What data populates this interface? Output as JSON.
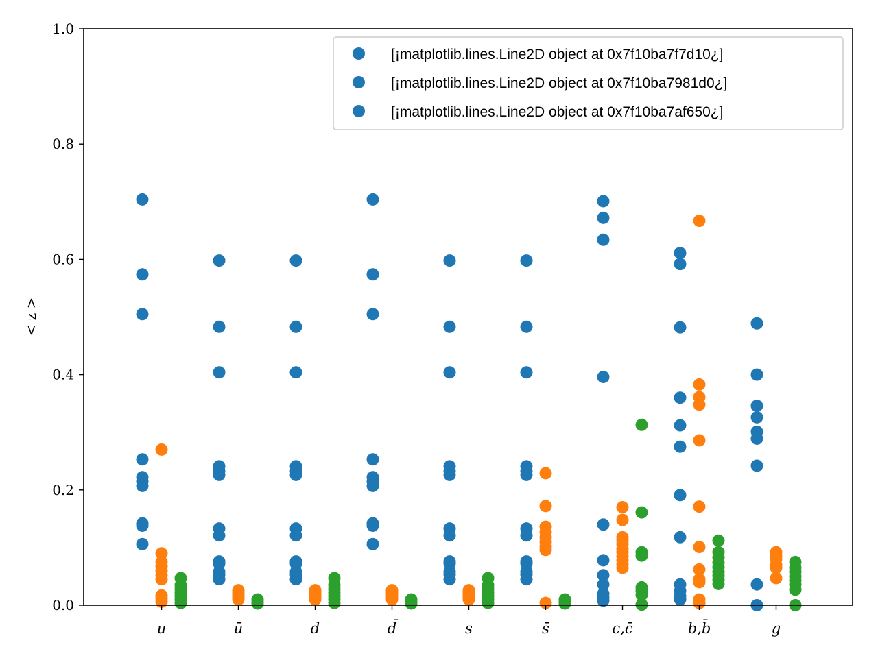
{
  "chart_data": {
    "type": "scatter",
    "categories": [
      "u",
      "ū",
      "d",
      "d̄",
      "s",
      "s̄",
      "c,c̄",
      "b,b̄",
      "g"
    ],
    "ylabel": "< z >",
    "xlabel": "",
    "ylim": [
      0,
      1
    ],
    "yticks": [
      "0.0",
      "0.2",
      "0.4",
      "0.6",
      "0.8",
      "1.0"
    ],
    "grid": false,
    "legend_position": "top-right",
    "legend": [
      "[¡matplotlib.lines.Line2D object at 0x7f10ba7f7d10¿]",
      "[¡matplotlib.lines.Line2D object at 0x7f10ba7981d0¿]",
      "[¡matplotlib.lines.Line2D object at 0x7f10ba7af650¿]"
    ],
    "legend_color": "#1f77b4",
    "series": [
      {
        "color": "#1f77b4",
        "offset": -0.25,
        "values": [
          [
            0.704,
            0.574,
            0.505,
            0.253,
            0.222,
            0.215,
            0.207,
            0.142,
            0.138,
            0.106
          ],
          [
            0.598,
            0.483,
            0.404,
            0.241,
            0.233,
            0.226,
            0.133,
            0.121,
            0.076,
            0.072,
            0.058,
            0.053,
            0.045
          ],
          [
            0.598,
            0.483,
            0.404,
            0.241,
            0.233,
            0.226,
            0.133,
            0.121,
            0.076,
            0.072,
            0.058,
            0.053,
            0.045
          ],
          [
            0.704,
            0.574,
            0.505,
            0.253,
            0.222,
            0.215,
            0.207,
            0.142,
            0.138,
            0.106
          ],
          [
            0.598,
            0.483,
            0.404,
            0.241,
            0.233,
            0.226,
            0.133,
            0.121,
            0.076,
            0.072,
            0.058,
            0.053,
            0.045
          ],
          [
            0.598,
            0.483,
            0.404,
            0.241,
            0.233,
            0.226,
            0.133,
            0.121,
            0.076,
            0.072,
            0.058,
            0.053,
            0.045
          ],
          [
            0.701,
            0.672,
            0.634,
            0.396,
            0.14,
            0.078,
            0.052,
            0.036,
            0.02,
            0.013,
            0.008
          ],
          [
            0.611,
            0.592,
            0.482,
            0.36,
            0.312,
            0.275,
            0.191,
            0.118,
            0.036,
            0.025,
            0.016,
            0.01
          ],
          [
            0.489,
            0.4,
            0.346,
            0.326,
            0.301,
            0.289,
            0.242,
            0.036,
            0.0
          ]
        ]
      },
      {
        "color": "#ff7f0e",
        "offset": 0.0,
        "values": [
          [
            0.27,
            0.09,
            0.075,
            0.068,
            0.06,
            0.052,
            0.045,
            0.017,
            0.012,
            0.006
          ],
          [
            0.026,
            0.022,
            0.018,
            0.014,
            0.01
          ],
          [
            0.026,
            0.022,
            0.018,
            0.014,
            0.01
          ],
          [
            0.026,
            0.022,
            0.018,
            0.014,
            0.01
          ],
          [
            0.026,
            0.022,
            0.018,
            0.014,
            0.01
          ],
          [
            0.229,
            0.172,
            0.136,
            0.127,
            0.118,
            0.11,
            0.102,
            0.096,
            0.004
          ],
          [
            0.17,
            0.148,
            0.118,
            0.112,
            0.106,
            0.098,
            0.092,
            0.085,
            0.078,
            0.071,
            0.065
          ],
          [
            0.667,
            0.383,
            0.361,
            0.348,
            0.286,
            0.171,
            0.101,
            0.062,
            0.045,
            0.04,
            0.01,
            0.004
          ],
          [
            0.092,
            0.086,
            0.08,
            0.07,
            0.065,
            0.047
          ]
        ]
      },
      {
        "color": "#2ca02c",
        "offset": 0.25,
        "values": [
          [
            0.047,
            0.035,
            0.028,
            0.022,
            0.016,
            0.01,
            0.004
          ],
          [
            0.01,
            0.006,
            0.003
          ],
          [
            0.047,
            0.035,
            0.028,
            0.022,
            0.016,
            0.01,
            0.004
          ],
          [
            0.01,
            0.006,
            0.003
          ],
          [
            0.047,
            0.035,
            0.028,
            0.022,
            0.016,
            0.01,
            0.004
          ],
          [
            0.01,
            0.006,
            0.003
          ],
          [
            0.313,
            0.161,
            0.092,
            0.086,
            0.031,
            0.025,
            0.018,
            0.001
          ],
          [
            0.112,
            0.092,
            0.083,
            0.074,
            0.066,
            0.058,
            0.051,
            0.044,
            0.037
          ],
          [
            0.075,
            0.065,
            0.058,
            0.05,
            0.043,
            0.036,
            0.027,
            0.0
          ]
        ]
      }
    ]
  }
}
